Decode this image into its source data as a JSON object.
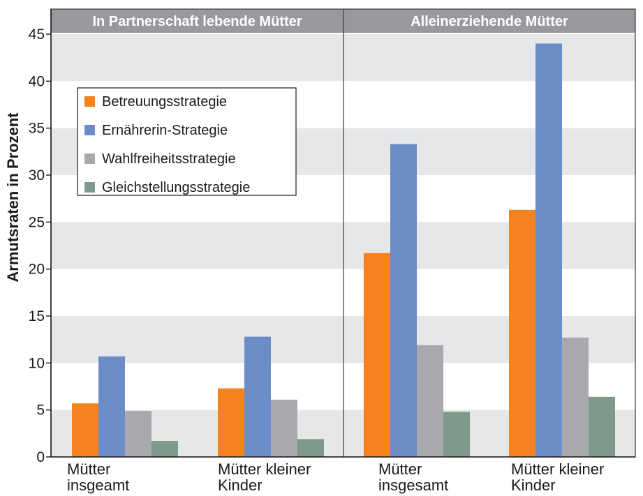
{
  "chart_data": {
    "type": "bar",
    "ylabel": "Armutsraten in Prozent",
    "ylim": [
      0,
      45
    ],
    "yticks": [
      0,
      5,
      10,
      15,
      20,
      25,
      30,
      35,
      40,
      45
    ],
    "grid": "alternating horizontal bands",
    "legend_placement": "top-left",
    "panels": [
      {
        "title": "In Partnerschaft lebende Mütter",
        "categories": [
          [
            "Mütter",
            "insgeamt"
          ],
          [
            "Mütter kleiner",
            "Kinder"
          ]
        ],
        "series": [
          {
            "name": "Betreuungsstrategie",
            "values": [
              5.7,
              7.3
            ]
          },
          {
            "name": "Ernährerin-Strategie",
            "values": [
              10.7,
              12.8
            ]
          },
          {
            "name": "Wahlfreiheitsstrategie",
            "values": [
              4.9,
              6.1
            ]
          },
          {
            "name": "Gleichstellungsstrategie",
            "values": [
              1.7,
              1.9
            ]
          }
        ]
      },
      {
        "title": "Alleinerziehende Mütter",
        "categories": [
          [
            "Mütter",
            "insgesamt"
          ],
          [
            "Mütter kleiner",
            "Kinder"
          ]
        ],
        "series": [
          {
            "name": "Betreuungsstrategie",
            "values": [
              21.7,
              26.3
            ]
          },
          {
            "name": "Ernährerin-Strategie",
            "values": [
              33.3,
              44.0
            ]
          },
          {
            "name": "Wahlfreiheitsstrategie",
            "values": [
              11.9,
              12.7
            ]
          },
          {
            "name": "Gleichstellungsstrategie",
            "values": [
              4.8,
              6.4
            ]
          }
        ]
      }
    ],
    "series_colors": [
      "#f4821f",
      "#6c8cc8",
      "#a7a9ac",
      "#7f9a8a"
    ]
  }
}
